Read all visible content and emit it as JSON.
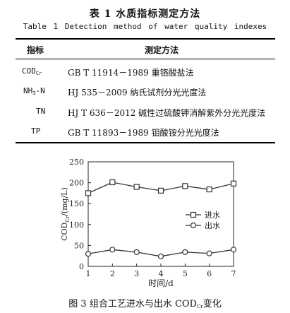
{
  "table": {
    "title": "表 1  水质指标测定方法",
    "title_en": "Table 1   Detection method of water quality indexes",
    "headers": [
      "指标",
      "测定方法"
    ],
    "rows": [
      {
        "index": "COD",
        "index_sub": "Cr",
        "method": "GB T 11914－1989 重铬酸盐法"
      },
      {
        "index": "NH",
        "index_sub": "3",
        "index_tail": "-N",
        "method": "HJ 535－2009 纳氏试剂分光光度法"
      },
      {
        "index": "TN",
        "method": "HJ T 636－2012 碱性过硫酸钾消解紫外分光光度法"
      },
      {
        "index": "TP",
        "method": "GB T 11893－1989 钼酸铵分光光度法"
      }
    ]
  },
  "chart_data": {
    "type": "line",
    "x": [
      1,
      2,
      3,
      4,
      5,
      6,
      7
    ],
    "xlabel": "时间/d",
    "ylabel": "COD",
    "ylabel_sub": "Cr",
    "ylabel_tail": "/(mg/L)",
    "ylim": [
      0,
      250
    ],
    "yticks": [
      0,
      50,
      100,
      150,
      200,
      250
    ],
    "xticks": [
      1,
      2,
      3,
      4,
      5,
      6,
      7
    ],
    "legend_position": "right",
    "grid": false,
    "series": [
      {
        "name": "进水",
        "marker": "square",
        "values": [
          175,
          201,
          190,
          181,
          192,
          184,
          198
        ]
      },
      {
        "name": "出水",
        "marker": "circle",
        "values": [
          30,
          40,
          34,
          24,
          34,
          31,
          40
        ]
      }
    ]
  },
  "figure": {
    "caption_prefix": "图 3   组合工艺进水与出水 COD",
    "caption_sub": "Cr",
    "caption_suffix": "变化"
  },
  "colors": {
    "line": "#333333",
    "text": "#111111"
  }
}
